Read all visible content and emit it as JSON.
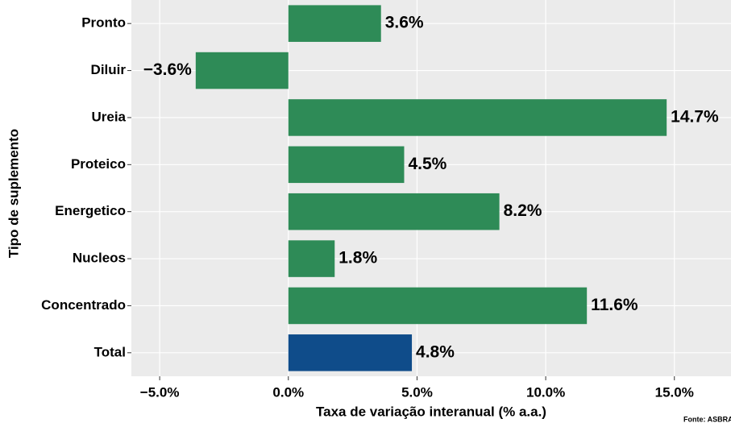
{
  "chart_data": {
    "type": "bar",
    "orientation": "horizontal",
    "categories": [
      "Pronto",
      "Diluir",
      "Ureia",
      "Proteico",
      "Energetico",
      "Nucleos",
      "Concentrado",
      "Total"
    ],
    "values": [
      3.6,
      -3.6,
      14.7,
      4.5,
      8.2,
      1.8,
      11.6,
      4.8
    ],
    "value_labels": [
      "3.6%",
      "−3.6%",
      "14.7%",
      "4.5%",
      "8.2%",
      "1.8%",
      "11.6%",
      "4.8%"
    ],
    "colors": [
      "#2e8b57",
      "#2e8b57",
      "#2e8b57",
      "#2e8b57",
      "#2e8b57",
      "#2e8b57",
      "#2e8b57",
      "#0f4c8a"
    ],
    "xlim": [
      -6.1,
      17.2
    ],
    "xticks": [
      {
        "value": -5,
        "label": "−5.0%"
      },
      {
        "value": 0,
        "label": "0.0%"
      },
      {
        "value": 5,
        "label": "5.0%"
      },
      {
        "value": 10,
        "label": "10.0%"
      },
      {
        "value": 15,
        "label": "15.0%"
      }
    ],
    "x_label": "Taxa de variação interanual (% a.a.)",
    "y_label": "Tipo de suplemento",
    "source": "Fonte: ASBRAN",
    "grid": true
  }
}
